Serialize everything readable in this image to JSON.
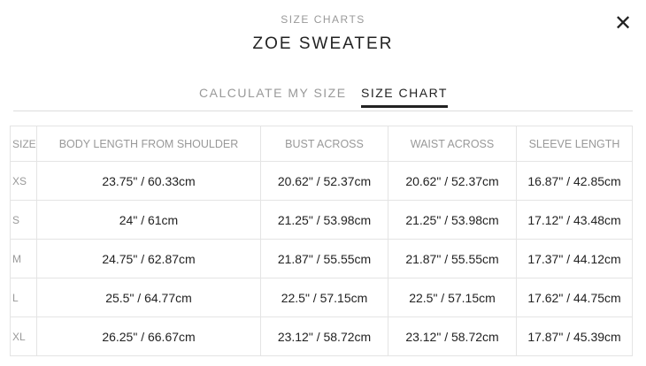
{
  "header": {
    "subtitle": "SIZE CHARTS",
    "title": "ZOE SWEATER",
    "close_icon": "close-x-icon"
  },
  "tabs": [
    {
      "label": "CALCULATE MY SIZE",
      "active": false
    },
    {
      "label": "SIZE CHART",
      "active": true
    }
  ],
  "table": {
    "columns": [
      "SIZE",
      "BODY LENGTH FROM SHOULDER",
      "BUST ACROSS",
      "WAIST ACROSS",
      "SLEEVE LENGTH"
    ],
    "rows": [
      [
        "XS",
        "23.75\" / 60.33cm",
        "20.62\" / 52.37cm",
        "20.62\" / 52.37cm",
        "16.87\" / 42.85cm"
      ],
      [
        "S",
        "24\" / 61cm",
        "21.25\" / 53.98cm",
        "21.25\" / 53.98cm",
        "17.12\" / 43.48cm"
      ],
      [
        "M",
        "24.75\" / 62.87cm",
        "21.87\" / 55.55cm",
        "21.87\" / 55.55cm",
        "17.37\" / 44.12cm"
      ],
      [
        "L",
        "25.5\" / 64.77cm",
        "22.5\" / 57.15cm",
        "22.5\" / 57.15cm",
        "17.62\" / 44.75cm"
      ],
      [
        "XL",
        "26.25\" / 66.67cm",
        "23.12\" / 58.72cm",
        "23.12\" / 58.72cm",
        "17.87\" / 45.39cm"
      ]
    ]
  }
}
